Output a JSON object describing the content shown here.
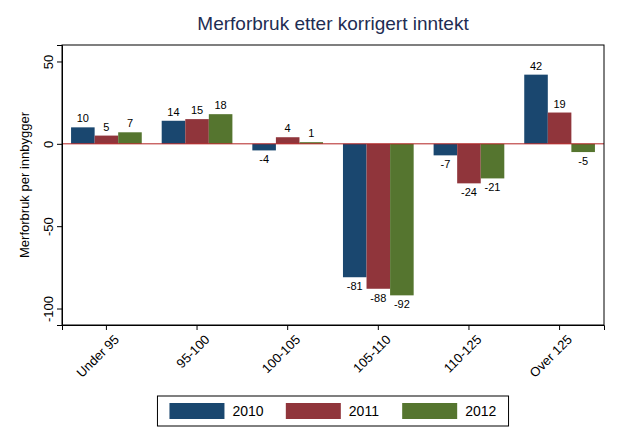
{
  "chart_data": {
    "type": "bar",
    "title": "Merforbruk etter korrigert inntekt",
    "ylabel": "Merforbruk per innbygger",
    "categories": [
      "Under 95",
      "95-100",
      "100-105",
      "105-110",
      "110-125",
      "Over 125"
    ],
    "series": [
      {
        "name": "2010",
        "color": "#1a476f",
        "values": [
          10,
          14,
          -4,
          -81,
          -7,
          42
        ]
      },
      {
        "name": "2011",
        "color": "#90353b",
        "values": [
          5,
          15,
          4,
          -88,
          -24,
          19
        ]
      },
      {
        "name": "2012",
        "color": "#55752f",
        "values": [
          7,
          18,
          1,
          -92,
          -21,
          -5
        ]
      }
    ],
    "ylim": [
      -110,
      60
    ],
    "yticks": [
      -100,
      -50,
      0,
      50
    ],
    "grid": false,
    "legend": "bottom",
    "data_labels": true
  }
}
